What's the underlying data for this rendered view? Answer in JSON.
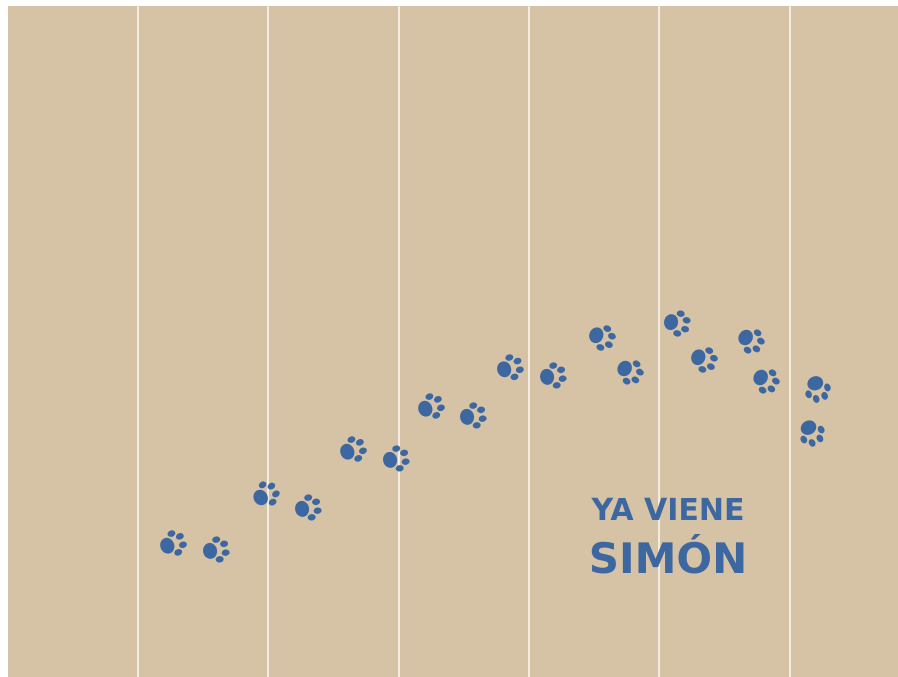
{
  "text": {
    "line1": "YA VIENE",
    "line2": "SIMÓN"
  }
}
